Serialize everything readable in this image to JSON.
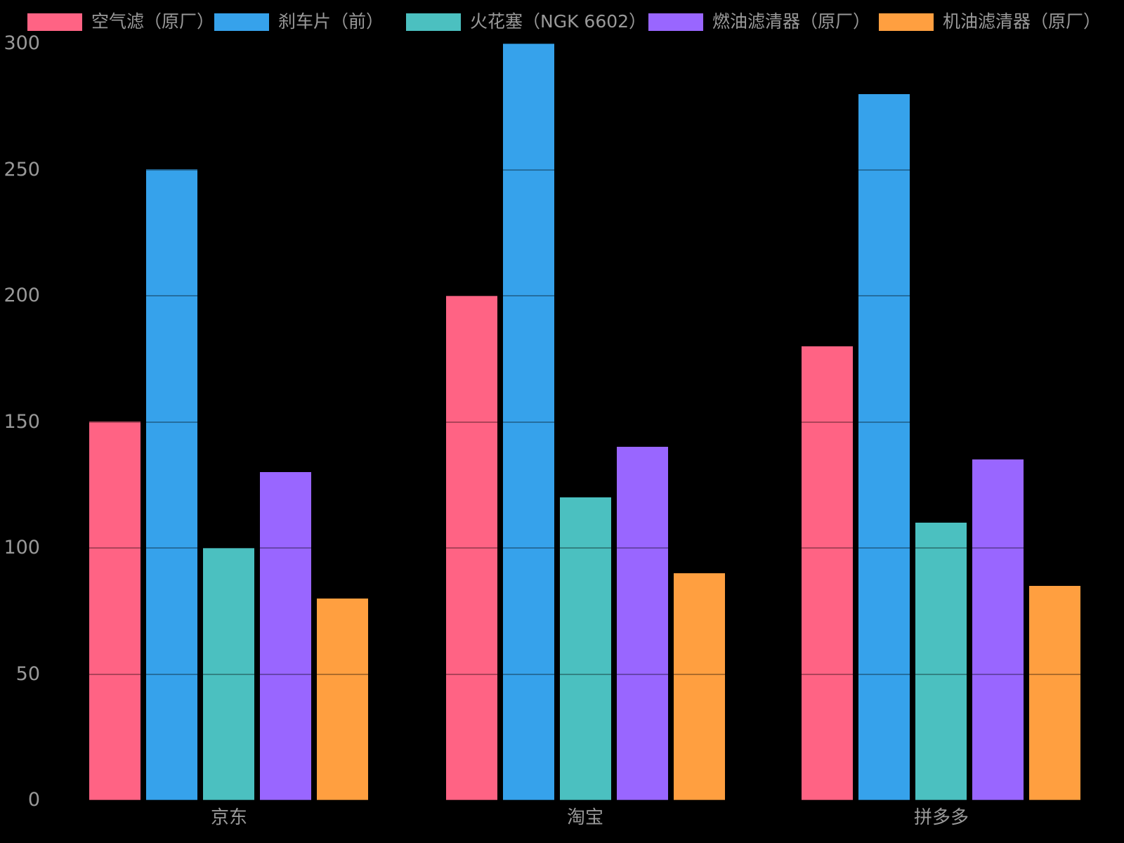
{
  "chart_data": {
    "type": "bar",
    "title": "",
    "categories": [
      "京东",
      "淘宝",
      "拼多多"
    ],
    "series": [
      {
        "name": "空气滤（原厂）",
        "color": "#FF6384",
        "values": [
          150,
          200,
          180
        ]
      },
      {
        "name": "刹车片（前）",
        "color": "#36A2EB",
        "values": [
          250,
          300,
          280
        ]
      },
      {
        "name": "火花塞（NGK 6602）",
        "color": "#4BC0C0",
        "values": [
          100,
          120,
          110
        ]
      },
      {
        "name": "燃油滤清器（原厂）",
        "color": "#9966FF",
        "values": [
          130,
          140,
          135
        ]
      },
      {
        "name": "机油滤清器（原厂）",
        "color": "#FF9F40",
        "values": [
          80,
          90,
          85
        ]
      }
    ],
    "xlabel": "",
    "ylabel": "",
    "ylim": [
      0,
      300
    ],
    "yticks": [
      0,
      50,
      100,
      150,
      200,
      250,
      300
    ],
    "grid": true,
    "legend_position": "top",
    "background_color": "#000000",
    "text_color": "#999999",
    "gridline_overlay_color": "rgba(0,0,0,0.32)"
  }
}
